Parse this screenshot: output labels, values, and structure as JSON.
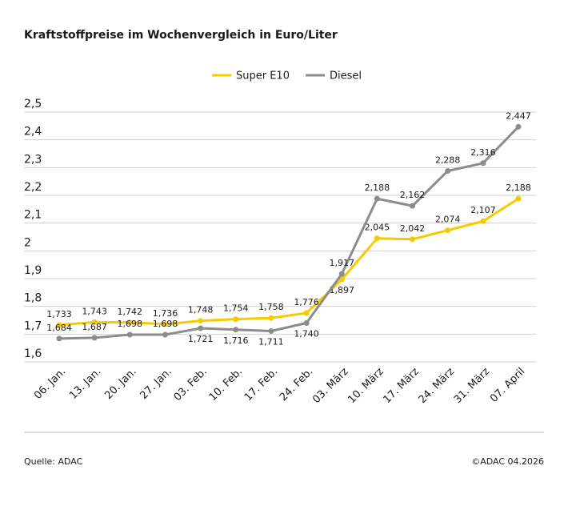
{
  "chart_data": {
    "type": "line",
    "title": "Kraftstoffpreise im Wochenvergleich in Euro/Liter",
    "categories": [
      "06. Jan.",
      "13. Jan.",
      "20. Jan.",
      "27. Jan.",
      "03. Feb.",
      "10. Feb.",
      "17. Feb.",
      "24. Feb.",
      "03. März",
      "10. März",
      "17. März",
      "24. März",
      "31. März",
      "07. April"
    ],
    "series": [
      {
        "name": "Super E10",
        "color": "#f5cb00",
        "values": [
          1.733,
          1.743,
          1.742,
          1.736,
          1.748,
          1.754,
          1.758,
          1.776,
          1.897,
          2.045,
          2.042,
          2.074,
          2.107,
          2.188
        ],
        "value_labels": [
          "1,733",
          "1,743",
          "1,742",
          "1,736",
          "1,748",
          "1,754",
          "1,758",
          "1,776",
          "1,897",
          "2,045",
          "2,042",
          "2,074",
          "2,107",
          "2,188"
        ]
      },
      {
        "name": "Diesel",
        "color": "#8c8c8c",
        "values": [
          1.684,
          1.687,
          1.698,
          1.698,
          1.721,
          1.716,
          1.711,
          1.74,
          1.917,
          2.188,
          2.162,
          2.288,
          2.316,
          2.447
        ],
        "value_labels": [
          "1,684",
          "1,687",
          "1,698",
          "1,698",
          "1,721",
          "1,716",
          "1,711",
          "1,740",
          "1,917",
          "2,188",
          "2,162",
          "2,288",
          "2,316",
          "2,447"
        ]
      }
    ],
    "ylim": [
      1.6,
      2.5
    ],
    "yticks": [
      {
        "value": 1.6,
        "label": "1,6"
      },
      {
        "value": 1.7,
        "label": "1,7"
      },
      {
        "value": 1.8,
        "label": "1,8"
      },
      {
        "value": 1.9,
        "label": "1,9"
      },
      2,
      {
        "value": 2.1,
        "label": "2,1"
      },
      {
        "value": 2.2,
        "label": "2,2"
      },
      {
        "value": 2.3,
        "label": "2,3"
      },
      {
        "value": 2.4,
        "label": "2,4"
      },
      {
        "value": 2.5,
        "label": "2,5"
      }
    ],
    "grid": true,
    "legend": "top",
    "source": "Quelle: ADAC",
    "copyright": "©ADAC 04.2026"
  }
}
